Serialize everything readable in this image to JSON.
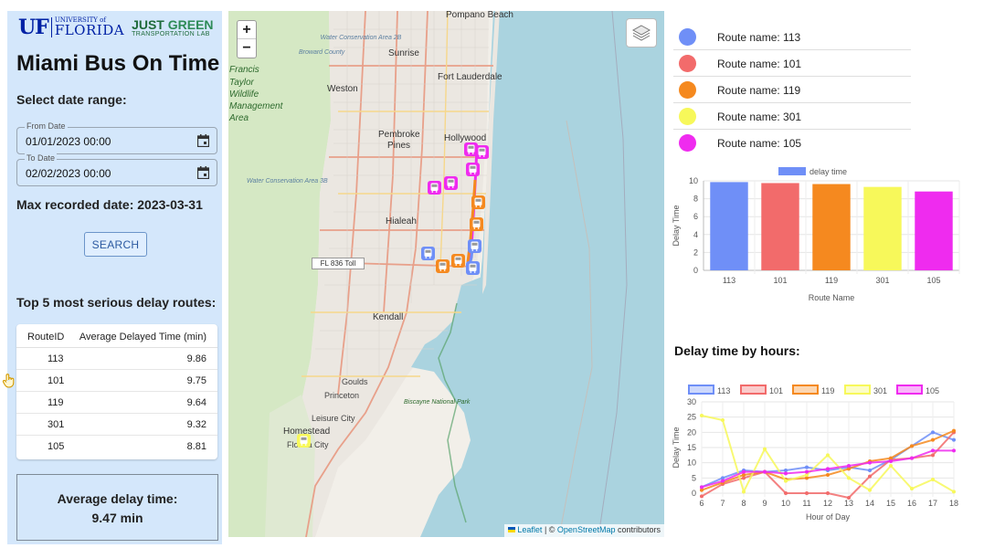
{
  "logos": {
    "uf_mark": "UF",
    "uf_small": "UNIVERSITY of",
    "uf_big": "FLORIDA",
    "lab_top_a": "JUST",
    "lab_top_b": "GREEN",
    "lab_bottom": "TRANSPORTATION LAB"
  },
  "sidebar": {
    "title": "Miami Bus On Time",
    "date_range_label": "Select date range:",
    "from_date": {
      "legend": "From Date",
      "value": "01/01/2023 00:00"
    },
    "to_date": {
      "legend": "To Date",
      "value": "02/02/2023 00:00"
    },
    "max_recorded": "Max recorded date: 2023-03-31",
    "search_label": "SEARCH",
    "top5_label": "Top 5 most serious delay routes:",
    "table": {
      "headers": [
        "RouteID",
        "Average Delayed Time (min)"
      ],
      "rows": [
        [
          "113",
          "9.86"
        ],
        [
          "101",
          "9.75"
        ],
        [
          "119",
          "9.64"
        ],
        [
          "301",
          "9.32"
        ],
        [
          "105",
          "8.81"
        ]
      ]
    },
    "avg_title": "Average delay time:",
    "avg_value": "9.47 min"
  },
  "map": {
    "zoom_in": "+",
    "zoom_out": "−",
    "labels": {
      "pompano": "Pompano Beach",
      "water_conservation_2b": "Water Conservation Area 2B",
      "broward": "Broward County",
      "sunrise": "Sunrise",
      "fort_lauderdale": "Fort Lauderdale",
      "francis": "Francis",
      "taylor": "Taylor",
      "wildlife": "Wildlife",
      "management": "Management",
      "area": "Area",
      "weston": "Weston",
      "pembroke": "Pembroke",
      "pines": "Pines",
      "hollywood": "Hollywood",
      "water_conservation_3b": "Water Conservation Area 3B",
      "hialeah": "Hialeah",
      "toll": "FL 836 Toll",
      "kendall": "Kendall",
      "goulds": "Goulds",
      "princeton": "Princeton",
      "leisure_city": "Leisure City",
      "homestead": "Homestead",
      "florida_city": "Florida City",
      "biscayne": "Biscayne National Park"
    },
    "attribution_link1": "Leaflet",
    "attribution_mid": " | © ",
    "attribution_link2": "OpenStreetMap",
    "attribution_end": " contributors"
  },
  "routes": [
    {
      "name": "Route name: 113",
      "color": "#6f8ff7"
    },
    {
      "name": "Route name: 101",
      "color": "#f26b6b"
    },
    {
      "name": "Route name: 119",
      "color": "#f5891f"
    },
    {
      "name": "Route name: 301",
      "color": "#f7f85a"
    },
    {
      "name": "Route name: 105",
      "color": "#ef2bef"
    }
  ],
  "line_heading": "Delay time by hours:",
  "chart_data": [
    {
      "type": "bar",
      "legend": "delay time",
      "categories": [
        "113",
        "101",
        "119",
        "301",
        "105"
      ],
      "values": [
        9.86,
        9.75,
        9.64,
        9.32,
        8.81
      ],
      "colors": [
        "#6f8ff7",
        "#f26b6b",
        "#f5891f",
        "#f7f85a",
        "#ef2bef"
      ],
      "xlabel": "Route Name",
      "ylabel": "Delay Time",
      "ylim": [
        0,
        10
      ],
      "yticks": [
        0,
        2,
        4,
        6,
        8,
        10
      ],
      "legend_position": "top"
    },
    {
      "type": "line",
      "x": [
        6,
        7,
        8,
        9,
        10,
        11,
        12,
        13,
        14,
        15,
        16,
        17,
        18
      ],
      "xlabel": "Hour of Day",
      "ylabel": "Delay Time",
      "ylim": [
        0,
        30
      ],
      "yticks": [
        0,
        5,
        10,
        15,
        20,
        25,
        30
      ],
      "legend_position": "top",
      "series": [
        {
          "name": "113",
          "color": "#6f8ff7",
          "values": [
            2,
            5,
            7.5,
            7,
            7.5,
            8.5,
            7.5,
            8.5,
            7.5,
            11,
            15.5,
            20,
            17.5
          ]
        },
        {
          "name": "101",
          "color": "#f26b6b",
          "values": [
            -1,
            3,
            5,
            7,
            0,
            0,
            0,
            -1.5,
            5.5,
            11,
            11.5,
            12.5,
            20
          ]
        },
        {
          "name": "119",
          "color": "#f5891f",
          "values": [
            1,
            3.5,
            6,
            7,
            4.5,
            5,
            6,
            8,
            10.5,
            11.5,
            15.5,
            17.5,
            20.5
          ]
        },
        {
          "name": "301",
          "color": "#f7f85a",
          "values": [
            25.5,
            24,
            0.5,
            14.5,
            4,
            6,
            12.5,
            5,
            1,
            9,
            1.5,
            4.5,
            0.5
          ]
        },
        {
          "name": "105",
          "color": "#ef2bef",
          "values": [
            2,
            4,
            7,
            7,
            6.5,
            7,
            8,
            9,
            10,
            10.5,
            11.5,
            14,
            14
          ]
        }
      ]
    }
  ]
}
